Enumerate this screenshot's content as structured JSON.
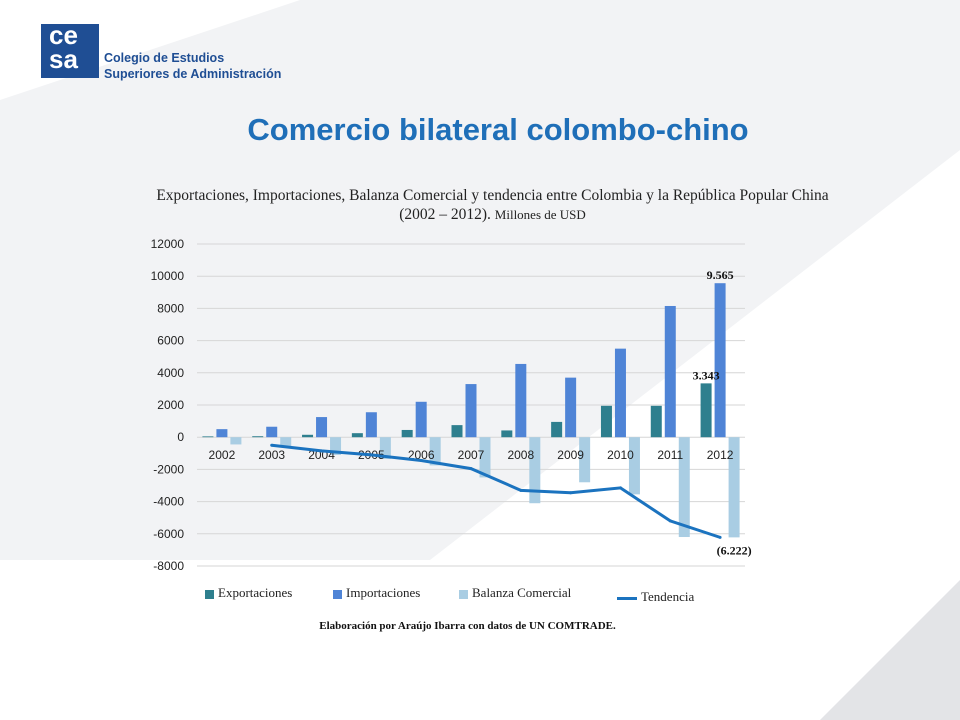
{
  "header": {
    "logo_line1": "ce",
    "logo_line2": "sa",
    "org_line1": "Colegio de Estudios",
    "org_line2": "Superiores de Administración"
  },
  "slide_title": "Comercio bilateral colombo-chino",
  "chart_title": {
    "line1": "Exportaciones, Importaciones, Balanza Comercial y tendencia entre Colombia y la República Popular China",
    "line2": "(2002 – 2012).",
    "units": "Millones de USD"
  },
  "source_note": "Elaboración por Araújo Ibarra  con datos de UN COMTRADE.",
  "colors": {
    "exportaciones": "#2e7f8e",
    "importaciones": "#4f84d6",
    "balanza": "#a9cde3",
    "tendencia": "#1b73bf",
    "title": "#1f6fb8",
    "logo": "#1f4e94"
  },
  "chart_data": {
    "type": "bar",
    "categories": [
      "2002",
      "2003",
      "2004",
      "2005",
      "2006",
      "2007",
      "2008",
      "2009",
      "2010",
      "2011",
      "2012"
    ],
    "ylim": [
      -8000,
      12000
    ],
    "yticks": [
      "12000",
      "10000",
      "8000",
      "6000",
      "4000",
      "2000",
      "0",
      "-2000",
      "-4000",
      "-6000",
      "-8000"
    ],
    "grid": true,
    "legend_position": "bottom",
    "series": [
      {
        "name": "Exportaciones",
        "type": "bar",
        "values": [
          50,
          60,
          150,
          250,
          450,
          750,
          420,
          950,
          1950,
          1950,
          3343
        ]
      },
      {
        "name": "Importaciones",
        "type": "bar",
        "values": [
          500,
          650,
          1250,
          1550,
          2200,
          3300,
          4550,
          3700,
          5500,
          8150,
          9565
        ]
      },
      {
        "name": "Balanza Comercial",
        "type": "bar",
        "values": [
          -450,
          -600,
          -1100,
          -1350,
          -1750,
          -2500,
          -4100,
          -2800,
          -3550,
          -6200,
          -6222
        ]
      },
      {
        "name": "Tendencia",
        "type": "line",
        "values": [
          null,
          -500,
          -850,
          -1100,
          -1450,
          -1950,
          -3300,
          -3450,
          -3150,
          -5200,
          -6222
        ]
      }
    ],
    "annotations": [
      {
        "text": "9.565",
        "series": "Importaciones",
        "category": "2012"
      },
      {
        "text": "3.343",
        "series": "Exportaciones",
        "category": "2012"
      },
      {
        "text": "(6.222)",
        "series": "Balanza Comercial",
        "category": "2012"
      }
    ]
  }
}
